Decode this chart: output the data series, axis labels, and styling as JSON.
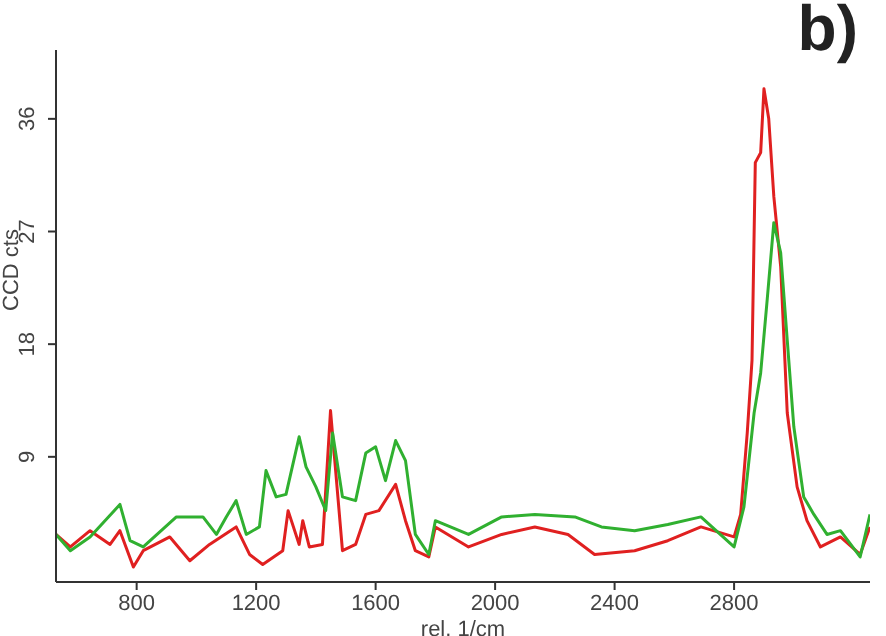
{
  "chart_data": {
    "type": "line",
    "title": "b)",
    "xlabel": "rel. 1/cm",
    "ylabel": "CCD cts",
    "xlim": [
      530,
      3255
    ],
    "xticks": [
      800,
      1200,
      1600,
      2000,
      2400,
      2800
    ],
    "ylim": [
      -1,
      41.5
    ],
    "yticks": [
      9,
      18,
      27,
      36
    ],
    "marker": "none",
    "line_style": "solid",
    "series": [
      {
        "color": "#e02020",
        "x": [
          530,
          578,
          644,
          711,
          744,
          789,
          822,
          911,
          978,
          1044,
          1133,
          1178,
          1222,
          1289,
          1307,
          1344,
          1356,
          1378,
          1422,
          1449,
          1489,
          1533,
          1567,
          1611,
          1667,
          1700,
          1733,
          1778,
          1800,
          1911,
          2022,
          2133,
          2244,
          2333,
          2467,
          2578,
          2689,
          2800,
          2822,
          2844,
          2860,
          2871,
          2889,
          2900,
          2916,
          2933,
          2956,
          2978,
          3011,
          3044,
          3089,
          3156,
          3222,
          3255
        ],
        "values": [
          2.8,
          1.8,
          3.1,
          2.0,
          3.1,
          0.2,
          1.5,
          2.6,
          0.7,
          2.0,
          3.4,
          1.2,
          0.4,
          1.5,
          4.7,
          2.0,
          3.9,
          1.8,
          2.0,
          12.7,
          1.5,
          2.0,
          4.4,
          4.7,
          6.8,
          3.9,
          1.5,
          1.0,
          3.4,
          1.8,
          2.8,
          3.4,
          2.8,
          1.2,
          1.5,
          2.3,
          3.4,
          2.6,
          4.4,
          10.9,
          16.7,
          32.5,
          33.3,
          38.4,
          36.0,
          29.8,
          24.2,
          12.5,
          6.6,
          3.9,
          1.8,
          2.6,
          1.2,
          3.4
        ]
      },
      {
        "color": "#30b030",
        "x": [
          530,
          578,
          644,
          744,
          778,
          822,
          933,
          1022,
          1067,
          1100,
          1133,
          1167,
          1211,
          1233,
          1267,
          1300,
          1344,
          1367,
          1400,
          1433,
          1456,
          1489,
          1533,
          1567,
          1600,
          1633,
          1667,
          1700,
          1733,
          1778,
          1800,
          1911,
          2022,
          2133,
          2267,
          2356,
          2467,
          2578,
          2689,
          2800,
          2833,
          2867,
          2889,
          2911,
          2933,
          2956,
          2978,
          3000,
          3033,
          3067,
          3111,
          3156,
          3222,
          3255
        ],
        "values": [
          2.8,
          1.5,
          2.6,
          5.2,
          2.3,
          1.8,
          4.2,
          4.2,
          2.8,
          4.2,
          5.5,
          2.8,
          3.4,
          7.9,
          5.8,
          6.0,
          10.6,
          8.2,
          6.6,
          4.7,
          10.9,
          5.8,
          5.5,
          9.3,
          9.8,
          7.1,
          10.3,
          8.7,
          2.8,
          1.2,
          3.9,
          2.8,
          4.2,
          4.4,
          4.2,
          3.4,
          3.1,
          3.6,
          4.2,
          1.8,
          5.0,
          12.5,
          15.7,
          21.6,
          27.7,
          25.3,
          18.3,
          11.4,
          5.8,
          4.4,
          2.8,
          3.1,
          1.0,
          4.4
        ]
      }
    ]
  }
}
